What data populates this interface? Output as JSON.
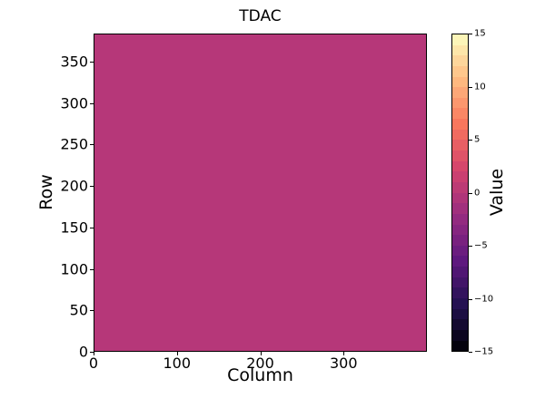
{
  "chart_data": {
    "type": "heatmap",
    "title": "TDAC",
    "xlabel": "Column",
    "ylabel": "Row",
    "x_range": [
      0,
      400
    ],
    "y_range": [
      0,
      384
    ],
    "xticks": [
      {
        "value": 0,
        "label": "0"
      },
      {
        "value": 100,
        "label": "100"
      },
      {
        "value": 200,
        "label": "200"
      },
      {
        "value": 300,
        "label": "300"
      }
    ],
    "yticks": [
      {
        "value": 0,
        "label": "0"
      },
      {
        "value": 50,
        "label": "50"
      },
      {
        "value": 100,
        "label": "100"
      },
      {
        "value": 150,
        "label": "150"
      },
      {
        "value": 200,
        "label": "200"
      },
      {
        "value": 250,
        "label": "250"
      },
      {
        "value": 300,
        "label": "300"
      },
      {
        "value": 350,
        "label": "350"
      }
    ],
    "values": "uniform",
    "uniform_value": 0,
    "cell_color": "#b63779",
    "grid": false,
    "colormap": "magma",
    "colormap_stops": [
      "#000004",
      "#221150",
      "#5f187f",
      "#982d80",
      "#d3436e",
      "#f8765c",
      "#febb81",
      "#fcfdbf"
    ],
    "colorbar": {
      "label": "Value",
      "min": -15,
      "max": 15,
      "steps": 30,
      "ticks": [
        {
          "value": 15,
          "label": "15"
        },
        {
          "value": 10,
          "label": "10"
        },
        {
          "value": 5,
          "label": "5"
        },
        {
          "value": 0,
          "label": "0"
        },
        {
          "value": -5,
          "label": "−5"
        },
        {
          "value": -10,
          "label": "−10"
        },
        {
          "value": -15,
          "label": "−15"
        }
      ]
    },
    "spine_color": "#000000",
    "background_color": "#ffffff"
  }
}
